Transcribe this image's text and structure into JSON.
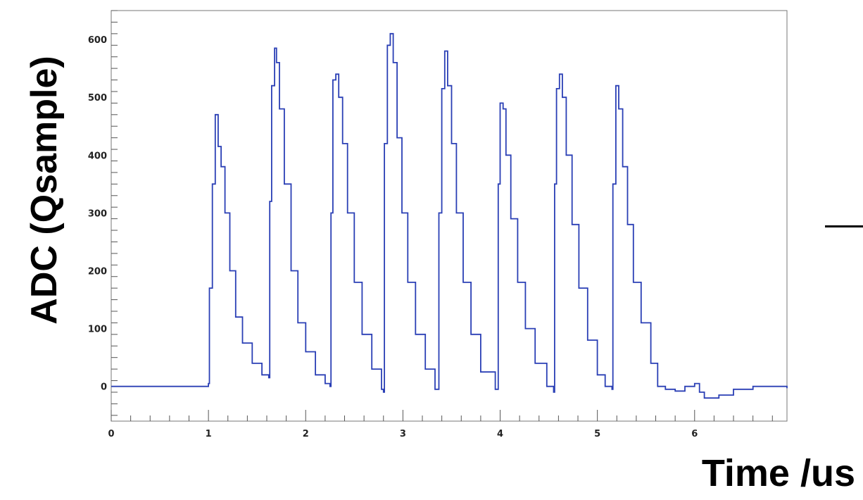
{
  "chart_data": {
    "type": "line",
    "title": "",
    "xlabel": "Time /us",
    "ylabel": "ADC (Qsample)",
    "xlim": [
      0,
      6.95
    ],
    "ylim": [
      -60,
      650
    ],
    "x_ticks": [
      0,
      1,
      2,
      3,
      4,
      5,
      6
    ],
    "x_tick_labels": [
      "0",
      "1",
      "2",
      "3",
      "4",
      "5",
      "6"
    ],
    "y_ticks": [
      0,
      100,
      200,
      300,
      400,
      500,
      600
    ],
    "y_tick_labels": [
      "0",
      "100",
      "200",
      "300",
      "400",
      "500",
      "600"
    ],
    "grid": false,
    "line_color": "#2a3fb5",
    "series": [
      {
        "values_xy": [
          [
            0.0,
            0
          ],
          [
            0.5,
            0
          ],
          [
            0.95,
            0
          ],
          [
            1.0,
            5
          ],
          [
            1.01,
            170
          ],
          [
            1.04,
            350
          ],
          [
            1.07,
            470
          ],
          [
            1.1,
            415
          ],
          [
            1.13,
            380
          ],
          [
            1.17,
            300
          ],
          [
            1.22,
            200
          ],
          [
            1.28,
            120
          ],
          [
            1.35,
            75
          ],
          [
            1.45,
            40
          ],
          [
            1.55,
            20
          ],
          [
            1.62,
            15
          ],
          [
            1.63,
            320
          ],
          [
            1.65,
            520
          ],
          [
            1.68,
            585
          ],
          [
            1.7,
            560
          ],
          [
            1.73,
            480
          ],
          [
            1.78,
            350
          ],
          [
            1.85,
            200
          ],
          [
            1.92,
            110
          ],
          [
            2.0,
            60
          ],
          [
            2.1,
            20
          ],
          [
            2.2,
            5
          ],
          [
            2.25,
            0
          ],
          [
            2.26,
            300
          ],
          [
            2.28,
            530
          ],
          [
            2.31,
            540
          ],
          [
            2.34,
            500
          ],
          [
            2.38,
            420
          ],
          [
            2.43,
            300
          ],
          [
            2.5,
            180
          ],
          [
            2.58,
            90
          ],
          [
            2.68,
            30
          ],
          [
            2.78,
            -5
          ],
          [
            2.8,
            -10
          ],
          [
            2.81,
            420
          ],
          [
            2.84,
            590
          ],
          [
            2.87,
            610
          ],
          [
            2.9,
            560
          ],
          [
            2.94,
            430
          ],
          [
            2.99,
            300
          ],
          [
            3.05,
            180
          ],
          [
            3.13,
            90
          ],
          [
            3.23,
            30
          ],
          [
            3.33,
            -5
          ],
          [
            3.35,
            -5
          ],
          [
            3.37,
            300
          ],
          [
            3.4,
            515
          ],
          [
            3.43,
            580
          ],
          [
            3.46,
            520
          ],
          [
            3.5,
            420
          ],
          [
            3.55,
            300
          ],
          [
            3.62,
            180
          ],
          [
            3.7,
            90
          ],
          [
            3.8,
            25
          ],
          [
            3.95,
            -5
          ],
          [
            3.97,
            -5
          ],
          [
            3.98,
            350
          ],
          [
            4.0,
            490
          ],
          [
            4.03,
            480
          ],
          [
            4.06,
            400
          ],
          [
            4.11,
            290
          ],
          [
            4.18,
            180
          ],
          [
            4.26,
            100
          ],
          [
            4.36,
            40
          ],
          [
            4.48,
            0
          ],
          [
            4.55,
            -10
          ],
          [
            4.56,
            350
          ],
          [
            4.58,
            515
          ],
          [
            4.61,
            540
          ],
          [
            4.64,
            500
          ],
          [
            4.68,
            400
          ],
          [
            4.74,
            280
          ],
          [
            4.81,
            170
          ],
          [
            4.9,
            80
          ],
          [
            5.0,
            20
          ],
          [
            5.08,
            0
          ],
          [
            5.15,
            -5
          ],
          [
            5.16,
            350
          ],
          [
            5.19,
            520
          ],
          [
            5.22,
            480
          ],
          [
            5.26,
            380
          ],
          [
            5.31,
            280
          ],
          [
            5.37,
            180
          ],
          [
            5.45,
            110
          ],
          [
            5.55,
            40
          ],
          [
            5.62,
            0
          ],
          [
            5.7,
            -5
          ],
          [
            5.8,
            -8
          ],
          [
            5.9,
            0
          ],
          [
            6.0,
            5
          ],
          [
            6.05,
            -10
          ],
          [
            6.1,
            -20
          ],
          [
            6.25,
            -15
          ],
          [
            6.4,
            -5
          ],
          [
            6.6,
            0
          ],
          [
            6.8,
            0
          ],
          [
            6.95,
            -3
          ]
        ]
      }
    ]
  },
  "right_mark": "—"
}
